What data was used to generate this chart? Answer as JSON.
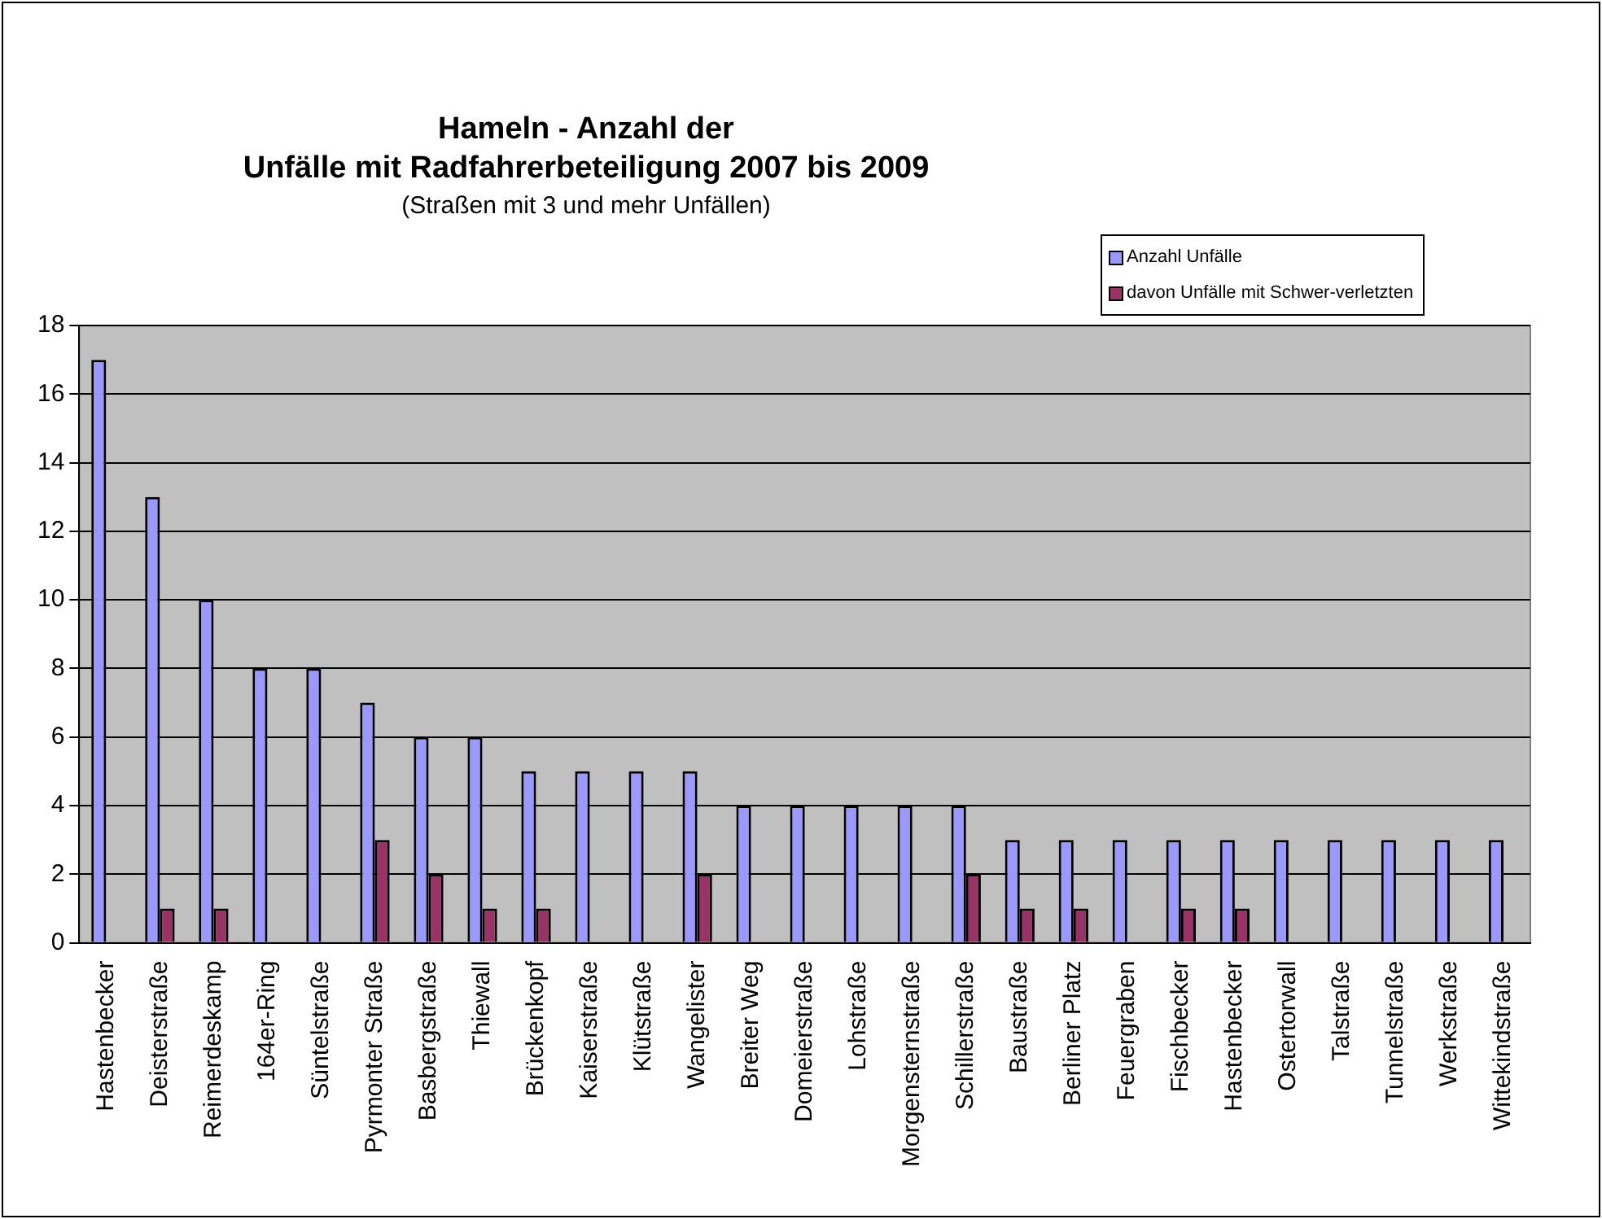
{
  "chart_data": {
    "type": "bar",
    "title": "Hameln - Anzahl der\nUnfälle mit Radfahrerbeteiligung 2007 bis 2009",
    "subtitle": "(Straßen mit 3 und mehr Unfällen)",
    "categories": [
      "Hastenbecker",
      "Deisterstraße",
      "Reimerdeskamp",
      "164er-Ring",
      "Süntelstraße",
      "Pyrmonter Straße",
      "Basbergstraße",
      "Thiewall",
      "Brückenkopf",
      "Kaiserstraße",
      "Klütstraße",
      "Wangelister",
      "Breiter Weg",
      "Domeierstraße",
      "Lohstraße",
      "Morgensternstraße",
      "Schillerstraße",
      "Baustraße",
      "Berliner Platz",
      "Feuergraben",
      "Fischbecker",
      "Hastenbecker",
      "Ostertorwall",
      "Talstraße",
      "Tunnelstraße",
      "Werkstraße",
      "Wittekindstraße"
    ],
    "series": [
      {
        "name": "Anzahl Unfälle",
        "color": "#9999ff",
        "values": [
          17,
          13,
          10,
          8,
          8,
          7,
          6,
          6,
          5,
          5,
          5,
          5,
          4,
          4,
          4,
          4,
          4,
          3,
          3,
          3,
          3,
          3,
          3,
          3,
          3,
          3,
          3
        ]
      },
      {
        "name": "davon Unfälle mit Schwer-verletzten",
        "color": "#993366",
        "values": [
          0,
          1,
          1,
          0,
          0,
          3,
          2,
          1,
          1,
          0,
          0,
          2,
          0,
          0,
          0,
          0,
          2,
          1,
          1,
          0,
          1,
          1,
          0,
          0,
          0,
          0,
          0
        ]
      }
    ],
    "ylim": [
      0,
      18
    ],
    "yticks": [
      0,
      2,
      4,
      6,
      8,
      10,
      12,
      14,
      16,
      18
    ],
    "grid": "y",
    "legend": "top right"
  }
}
